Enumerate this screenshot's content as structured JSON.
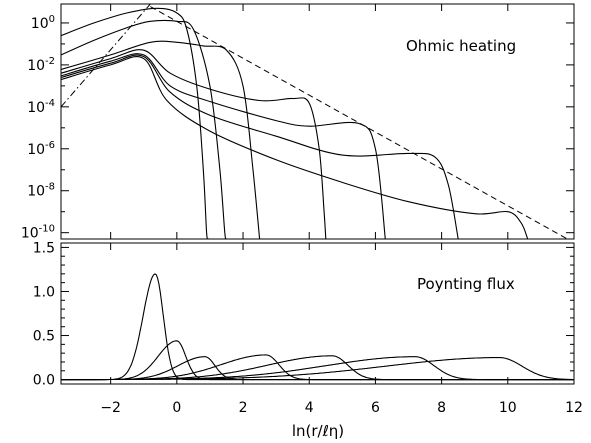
{
  "chart_data": [
    {
      "type": "line",
      "panel": "top",
      "yscale": "log",
      "xlim": [
        -3.5,
        12
      ],
      "ylim": [
        5e-11,
        8
      ],
      "annotation": "Ohmic heating",
      "xticks": [
        -2,
        0,
        2,
        4,
        6,
        8,
        10,
        12
      ],
      "yticks": [
        {
          "value": 1,
          "base": "10",
          "exp": "0"
        },
        {
          "value": 0.01,
          "base": "10",
          "exp": "-2"
        },
        {
          "value": 0.0001,
          "base": "10",
          "exp": "-4"
        },
        {
          "value": 1e-06,
          "base": "10",
          "exp": "-6"
        },
        {
          "value": 1e-08,
          "base": "10",
          "exp": "-8"
        },
        {
          "value": 1e-10,
          "base": "10",
          "exp": "-10"
        }
      ],
      "reference_lines": [
        {
          "style": "dashed",
          "points": [
            [
              -0.8,
              6.0
            ],
            [
              11.8,
              5e-11
            ]
          ]
        },
        {
          "style": "dash-dot",
          "points": [
            [
              -3.5,
              0.0001
            ],
            [
              -0.8,
              8.0
            ]
          ]
        }
      ],
      "series": [
        {
          "points": [
            [
              -3.5,
              0.25
            ],
            [
              -2.5,
              1.0
            ],
            [
              -1.5,
              3.0
            ],
            [
              -0.6,
              5.0
            ],
            [
              0.0,
              3.0
            ],
            [
              0.3,
              0.5
            ],
            [
              0.6,
              0.001
            ],
            [
              0.8,
              1e-07
            ],
            [
              0.9,
              1e-10
            ],
            [
              0.95,
              5e-11
            ]
          ]
        },
        {
          "points": [
            [
              -3.5,
              0.03
            ],
            [
              -2.5,
              0.15
            ],
            [
              -1.5,
              0.6
            ],
            [
              -0.8,
              1.2
            ],
            [
              0.0,
              1.2
            ],
            [
              0.5,
              0.5
            ],
            [
              1.0,
              0.001
            ],
            [
              1.3,
              1e-07
            ],
            [
              1.45,
              1e-10
            ],
            [
              1.5,
              5e-11
            ]
          ]
        },
        {
          "points": [
            [
              -3.5,
              0.006
            ],
            [
              -2.0,
              0.03
            ],
            [
              -0.8,
              0.12
            ],
            [
              0.0,
              0.12
            ],
            [
              0.8,
              0.08
            ],
            [
              1.5,
              0.05
            ],
            [
              2.0,
              0.001
            ],
            [
              2.3,
              1e-07
            ],
            [
              2.5,
              5e-11
            ]
          ]
        },
        {
          "points": [
            [
              -3.5,
              0.004
            ],
            [
              -2.0,
              0.02
            ],
            [
              -1.0,
              0.05
            ],
            [
              -0.2,
              0.004
            ],
            [
              1.0,
              0.0007
            ],
            [
              2.5,
              0.0002
            ],
            [
              3.5,
              0.00025
            ],
            [
              4.0,
              0.00015
            ],
            [
              4.3,
              1e-06
            ],
            [
              4.45,
              1e-09
            ],
            [
              4.5,
              5e-11
            ]
          ]
        },
        {
          "points": [
            [
              -3.5,
              0.003
            ],
            [
              -2.0,
              0.015
            ],
            [
              -1.0,
              0.03
            ],
            [
              -0.2,
              0.001
            ],
            [
              1.0,
              0.00018
            ],
            [
              3.0,
              2.2e-05
            ],
            [
              4.0,
              1.2e-05
            ],
            [
              5.5,
              1.6e-05
            ],
            [
              6.0,
              1e-06
            ],
            [
              6.3,
              5e-11
            ]
          ]
        },
        {
          "points": [
            [
              -3.5,
              0.0025
            ],
            [
              -2.0,
              0.012
            ],
            [
              -1.0,
              0.025
            ],
            [
              -0.2,
              0.0005
            ],
            [
              1.0,
              4e-05
            ],
            [
              3.0,
              4e-06
            ],
            [
              5.0,
              5e-07
            ],
            [
              7.0,
              6e-07
            ],
            [
              7.8,
              4e-07
            ],
            [
              8.2,
              2e-08
            ],
            [
              8.5,
              5e-11
            ]
          ]
        },
        {
          "points": [
            [
              -3.5,
              0.002
            ],
            [
              -2.0,
              0.01
            ],
            [
              -1.0,
              0.02
            ],
            [
              -0.3,
              0.0002
            ],
            [
              1.0,
              7e-06
            ],
            [
              3.0,
              3e-07
            ],
            [
              5.0,
              2.5e-08
            ],
            [
              7.0,
              3e-09
            ],
            [
              9.0,
              8e-10
            ],
            [
              10.0,
              1e-09
            ],
            [
              10.4,
              3e-10
            ],
            [
              10.6,
              5e-11
            ]
          ]
        }
      ]
    },
    {
      "type": "line",
      "panel": "bottom",
      "xlim": [
        -3.5,
        12
      ],
      "ylim": [
        -0.05,
        1.55
      ],
      "xlabel": "ln(r/ℓη)",
      "annotation": "Poynting flux",
      "xticks": [
        -2,
        0,
        2,
        4,
        6,
        8,
        10,
        12
      ],
      "yticks": [
        "0.0",
        "0.5",
        "1.0",
        "1.5"
      ],
      "series": [
        {
          "peak_x": -0.65,
          "peak_y": 1.2
        },
        {
          "peak_x": 0.0,
          "peak_y": 0.44
        },
        {
          "peak_x": 0.85,
          "peak_y": 0.26
        },
        {
          "peak_x": 2.7,
          "peak_y": 0.28
        },
        {
          "peak_x": 4.7,
          "peak_y": 0.27
        },
        {
          "peak_x": 7.2,
          "peak_y": 0.26
        },
        {
          "peak_x": 9.75,
          "peak_y": 0.25
        }
      ]
    }
  ]
}
